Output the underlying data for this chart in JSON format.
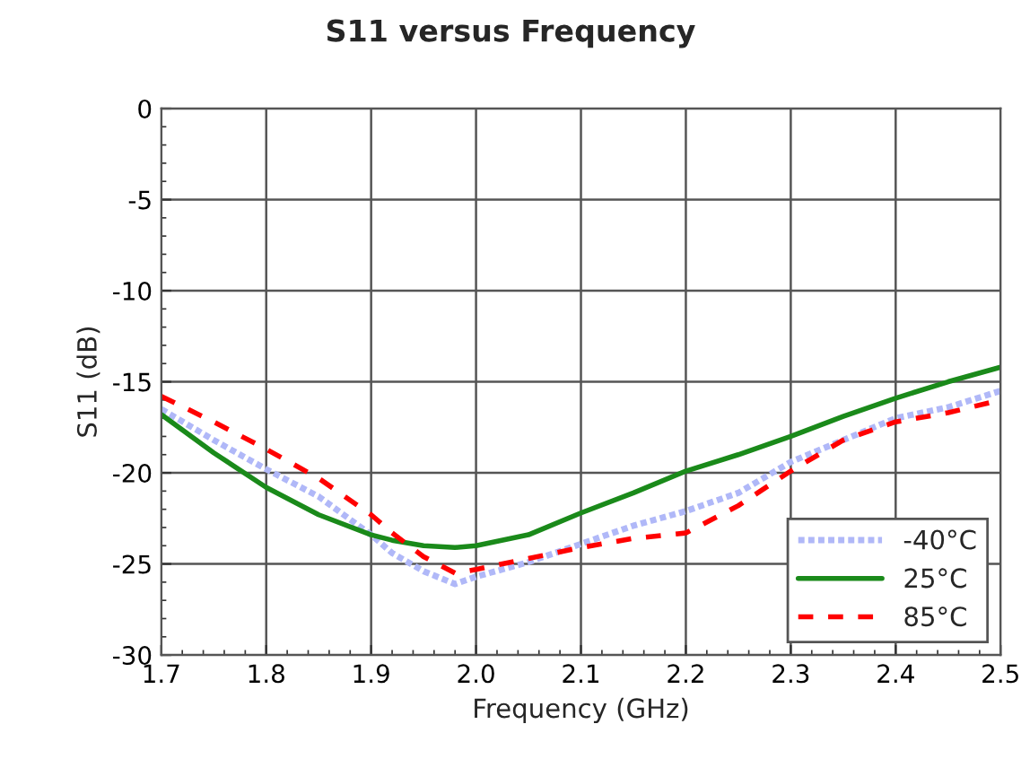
{
  "chart_data": {
    "type": "line",
    "title": "S11 versus Frequency",
    "xlabel": "Frequency (GHz)",
    "ylabel": "S11 (dB)",
    "x": [
      1.7,
      1.75,
      1.8,
      1.85,
      1.9,
      1.92,
      1.95,
      1.98,
      2.0,
      2.05,
      2.1,
      2.15,
      2.2,
      2.25,
      2.3,
      2.35,
      2.4,
      2.45,
      2.5
    ],
    "series": [
      {
        "name": "-40°C",
        "color": "#b0b8f8",
        "line_style": "dotted",
        "values": [
          -16.5,
          -18.2,
          -19.8,
          -21.3,
          -23.4,
          -24.4,
          -25.4,
          -26.1,
          -25.7,
          -24.9,
          -23.9,
          -22.9,
          -22.1,
          -21.1,
          -19.4,
          -18.2,
          -17.0,
          -16.4,
          -15.5
        ]
      },
      {
        "name": "25°C",
        "color": "#1a8a1a",
        "line_style": "solid",
        "values": [
          -16.8,
          -18.9,
          -20.8,
          -22.3,
          -23.4,
          -23.7,
          -24.0,
          -24.1,
          -24.0,
          -23.4,
          -22.2,
          -21.1,
          -19.9,
          -19.0,
          -18.0,
          -16.9,
          -15.9,
          -15.0,
          -14.2
        ]
      },
      {
        "name": "85°C",
        "color": "#ff0000",
        "line_style": "dashed",
        "values": [
          -15.8,
          -17.2,
          -18.7,
          -20.3,
          -22.3,
          -23.3,
          -24.6,
          -25.5,
          -25.3,
          -24.7,
          -24.1,
          -23.6,
          -23.3,
          -21.8,
          -19.9,
          -18.2,
          -17.2,
          -16.7,
          -16.0
        ]
      }
    ],
    "xlim": [
      1.7,
      2.5
    ],
    "xticks": [
      {
        "value": 1.7,
        "label": "1.7"
      },
      {
        "value": 1.8,
        "label": "1.8"
      },
      {
        "value": 1.9,
        "label": "1.9"
      },
      {
        "value": 2.0,
        "label": "2.0"
      },
      {
        "value": 2.1,
        "label": "2.1"
      },
      {
        "value": 2.2,
        "label": "2.2"
      },
      {
        "value": 2.3,
        "label": "2.3"
      },
      {
        "value": 2.4,
        "label": "2.4"
      },
      {
        "value": 2.5,
        "label": "2.5"
      }
    ],
    "ylim": [
      -30,
      0
    ],
    "yticks": [
      -30,
      -25,
      -20,
      -15,
      -10,
      -5,
      0
    ],
    "grid": true,
    "legend": "bottom right",
    "marker": "none"
  }
}
